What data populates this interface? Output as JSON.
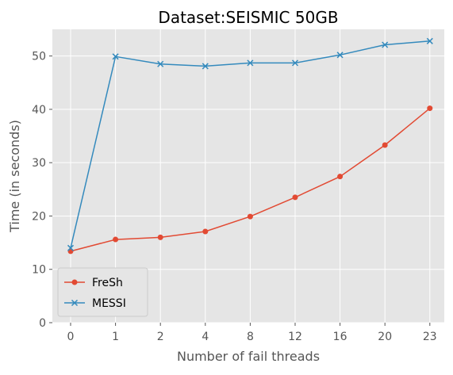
{
  "chart_data": {
    "type": "line",
    "title": "Dataset:SEISMIC 50GB",
    "xlabel": "Number of fail threads",
    "ylabel": "Time (in seconds)",
    "categories": [
      "0",
      "1",
      "2",
      "4",
      "8",
      "12",
      "16",
      "20",
      "23"
    ],
    "ylim": [
      0,
      55
    ],
    "yticks": [
      0,
      10,
      20,
      30,
      40,
      50
    ],
    "grid": true,
    "legend_position": "lower-left",
    "series": [
      {
        "name": "FreSh",
        "marker": "circle",
        "color": "#E24A33",
        "values": [
          13.4,
          15.6,
          16.0,
          17.1,
          19.9,
          23.5,
          27.4,
          33.3,
          40.2
        ]
      },
      {
        "name": "MESSI",
        "marker": "x",
        "color": "#348ABD",
        "values": [
          14.0,
          49.9,
          48.5,
          48.1,
          48.7,
          48.7,
          50.2,
          52.1,
          52.8
        ]
      }
    ]
  }
}
